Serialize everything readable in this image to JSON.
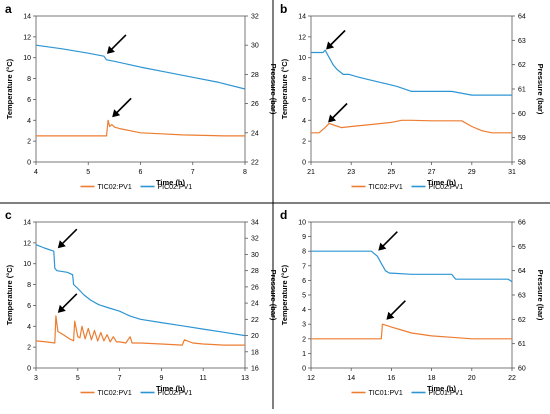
{
  "colors": {
    "temperature": "#ED7D31",
    "pressure": "#2E95D3",
    "axis": "#595959",
    "arrow": "#000000"
  },
  "chart_data": [
    {
      "type": "line",
      "panel_label": "a",
      "xlabel": "Time (h)",
      "ylabel_left": "Temperature (°C)",
      "ylabel_right": "Pressure (bar)",
      "xlim": [
        4,
        8
      ],
      "xticks": [
        "4",
        "5",
        "6",
        "7",
        "8"
      ],
      "ylim_left": [
        0,
        14
      ],
      "yticks_left": [
        "0",
        "2",
        "4",
        "6",
        "8",
        "10",
        "12",
        "14"
      ],
      "ylim_right": [
        22,
        32
      ],
      "yticks_right": [
        "22",
        "24",
        "26",
        "28",
        "30",
        "32"
      ],
      "grid": false,
      "legend": "bottom",
      "series": [
        {
          "name": "TIC02:PV1",
          "axis": "left",
          "color": "#ED7D31",
          "x": [
            4.0,
            4.5,
            5.0,
            5.35,
            5.38,
            5.41,
            5.45,
            5.5,
            5.6,
            5.8,
            6.0,
            6.4,
            6.8,
            7.2,
            7.6,
            8.0
          ],
          "y": [
            2.5,
            2.5,
            2.5,
            2.5,
            4.0,
            3.4,
            3.6,
            3.35,
            3.2,
            3.0,
            2.8,
            2.7,
            2.6,
            2.55,
            2.5,
            2.5
          ]
        },
        {
          "name": "PIC02:PV1",
          "axis": "right",
          "color": "#2E95D3",
          "x": [
            4.0,
            4.5,
            5.0,
            5.3,
            5.35,
            5.5,
            6.0,
            6.5,
            7.0,
            7.5,
            8.0
          ],
          "y": [
            30.0,
            29.75,
            29.45,
            29.25,
            29.0,
            28.9,
            28.5,
            28.15,
            27.8,
            27.45,
            27.0
          ]
        }
      ],
      "annotations": [
        {
          "type": "arrow",
          "series": "PIC02:PV1",
          "x": 5.3,
          "y": 29.2
        },
        {
          "type": "arrow",
          "series": "TIC02:PV1",
          "x": 5.4,
          "y": 4.0
        }
      ]
    },
    {
      "type": "line",
      "panel_label": "b",
      "xlabel": "Time (h)",
      "ylabel_left": "Temperature (°C)",
      "ylabel_right": "Pressure (bar)",
      "xlim": [
        21,
        31
      ],
      "xticks": [
        "21",
        "23",
        "25",
        "27",
        "29",
        "31"
      ],
      "ylim_left": [
        0,
        14
      ],
      "yticks_left": [
        "0",
        "2",
        "4",
        "6",
        "8",
        "10",
        "12",
        "14"
      ],
      "ylim_right": [
        58,
        64
      ],
      "yticks_right": [
        "58",
        "59",
        "60",
        "61",
        "62",
        "63",
        "64"
      ],
      "grid": false,
      "legend": "bottom",
      "series": [
        {
          "name": "TIC02:PV1",
          "axis": "left",
          "color": "#ED7D31",
          "x": [
            21.0,
            21.4,
            21.7,
            21.9,
            22.2,
            22.5,
            23.0,
            24.0,
            25.0,
            25.5,
            26.0,
            27.0,
            28.0,
            28.5,
            29.0,
            29.5,
            30.0,
            31.0
          ],
          "y": [
            2.8,
            2.8,
            3.3,
            3.7,
            3.5,
            3.3,
            3.4,
            3.6,
            3.8,
            4.0,
            4.0,
            3.95,
            3.95,
            3.95,
            3.4,
            3.0,
            2.8,
            2.8
          ]
        },
        {
          "name": "PIC02:PV1",
          "axis": "right",
          "color": "#2E95D3",
          "x": [
            21.0,
            21.6,
            21.7,
            21.9,
            22.1,
            22.3,
            22.6,
            22.9,
            23.3,
            23.8,
            24.3,
            24.8,
            25.3,
            26.0,
            27.0,
            28.0,
            29.0,
            30.0,
            31.0
          ],
          "y": [
            62.5,
            62.5,
            62.6,
            62.3,
            62.0,
            61.8,
            61.6,
            61.6,
            61.5,
            61.4,
            61.3,
            61.2,
            61.1,
            60.9,
            60.9,
            60.9,
            60.75,
            60.75,
            60.75
          ]
        }
      ],
      "annotations": [
        {
          "type": "arrow",
          "series": "PIC02:PV1",
          "x": 21.6,
          "y": 62.5
        },
        {
          "type": "arrow",
          "series": "TIC02:PV1",
          "x": 21.7,
          "y": 3.5
        }
      ]
    },
    {
      "type": "line",
      "panel_label": "c",
      "xlabel": "Time (h)",
      "ylabel_left": "Temperature (°C)",
      "ylabel_right": "Pressure (bar)",
      "xlim": [
        3,
        13
      ],
      "xticks": [
        "3",
        "5",
        "7",
        "9",
        "11",
        "13"
      ],
      "ylim_left": [
        0,
        14
      ],
      "yticks_left": [
        "0",
        "2",
        "4",
        "6",
        "8",
        "10",
        "12",
        "14"
      ],
      "ylim_right": [
        16,
        34
      ],
      "yticks_right": [
        "16",
        "18",
        "20",
        "22",
        "24",
        "26",
        "28",
        "30",
        "32",
        "34"
      ],
      "grid": false,
      "legend": "bottom",
      "series": [
        {
          "name": "TIC02:PV1",
          "axis": "left",
          "color": "#ED7D31",
          "x": [
            3.0,
            3.5,
            3.9,
            3.95,
            4.05,
            4.3,
            4.6,
            4.8,
            4.85,
            5.0,
            5.1,
            5.2,
            5.35,
            5.5,
            5.65,
            5.8,
            5.95,
            6.1,
            6.25,
            6.4,
            6.55,
            6.7,
            6.85,
            7.0,
            7.3,
            7.5,
            7.6,
            8.0,
            9.0,
            10.0,
            10.1,
            10.5,
            11.0,
            12.0,
            13.0
          ],
          "y": [
            2.6,
            2.5,
            2.4,
            5.0,
            3.5,
            3.2,
            2.8,
            2.6,
            4.5,
            3.0,
            2.9,
            4.0,
            2.8,
            3.8,
            2.7,
            3.6,
            2.6,
            3.4,
            2.6,
            3.2,
            2.5,
            3.0,
            2.5,
            2.5,
            2.4,
            3.0,
            2.4,
            2.4,
            2.3,
            2.2,
            2.7,
            2.4,
            2.3,
            2.2,
            2.2
          ]
        },
        {
          "name": "PIC02:PV1",
          "axis": "right",
          "color": "#2E95D3",
          "x": [
            3.0,
            3.4,
            3.85,
            3.9,
            4.0,
            4.5,
            4.75,
            4.8,
            5.0,
            5.3,
            5.6,
            6.0,
            6.5,
            7.0,
            7.5,
            8.0,
            9.0,
            10.0,
            11.0,
            12.0,
            13.0
          ],
          "y": [
            31.2,
            30.8,
            30.4,
            28.3,
            28.0,
            27.8,
            27.5,
            26.3,
            25.8,
            25.0,
            24.4,
            23.8,
            23.4,
            23.0,
            22.4,
            22.0,
            21.6,
            21.2,
            20.8,
            20.4,
            20.0
          ]
        }
      ],
      "annotations": [
        {
          "type": "arrow",
          "series": "PIC02:PV1",
          "x": 3.9,
          "y": 30.4
        },
        {
          "type": "arrow",
          "series": "TIC02:PV1",
          "x": 3.9,
          "y": 5.0
        }
      ]
    },
    {
      "type": "line",
      "panel_label": "d",
      "xlabel": "Time (h)",
      "ylabel_left": "Temperature (°C)",
      "ylabel_right": "Pressure (bar)",
      "xlim": [
        12,
        22
      ],
      "xticks": [
        "12",
        "14",
        "16",
        "18",
        "20",
        "22"
      ],
      "ylim_left": [
        0,
        10
      ],
      "yticks_left": [
        "0",
        "1",
        "2",
        "3",
        "4",
        "5",
        "6",
        "7",
        "8",
        "9",
        "10"
      ],
      "ylim_right": [
        60,
        66
      ],
      "yticks_right": [
        "60",
        "61",
        "62",
        "63",
        "64",
        "65",
        "66"
      ],
      "grid": false,
      "legend": "bottom",
      "series": [
        {
          "name": "TIC01:PV1",
          "axis": "left",
          "color": "#ED7D31",
          "x": [
            12.0,
            13.0,
            14.0,
            15.0,
            15.5,
            15.55,
            15.8,
            16.0,
            16.5,
            17.0,
            18.0,
            19.0,
            20.0,
            21.0,
            22.0
          ],
          "y": [
            2.0,
            2.0,
            2.0,
            2.0,
            2.0,
            3.0,
            2.9,
            2.8,
            2.6,
            2.4,
            2.2,
            2.1,
            2.0,
            2.0,
            2.0
          ]
        },
        {
          "name": "PIC01:PV1",
          "axis": "right",
          "color": "#2E95D3",
          "x": [
            12.0,
            13.0,
            14.0,
            15.0,
            15.3,
            15.5,
            15.7,
            15.9,
            16.0,
            17.0,
            18.0,
            19.0,
            19.2,
            20.0,
            21.0,
            21.8,
            22.0
          ],
          "y": [
            64.8,
            64.8,
            64.8,
            64.8,
            64.6,
            64.3,
            64.0,
            63.9,
            63.9,
            63.85,
            63.85,
            63.85,
            63.65,
            63.65,
            63.65,
            63.65,
            63.55
          ]
        }
      ],
      "annotations": [
        {
          "type": "arrow",
          "series": "PIC01:PV1",
          "x": 15.2,
          "y": 64.7
        },
        {
          "type": "arrow",
          "series": "TIC01:PV1",
          "x": 15.6,
          "y": 3.1
        }
      ]
    }
  ]
}
